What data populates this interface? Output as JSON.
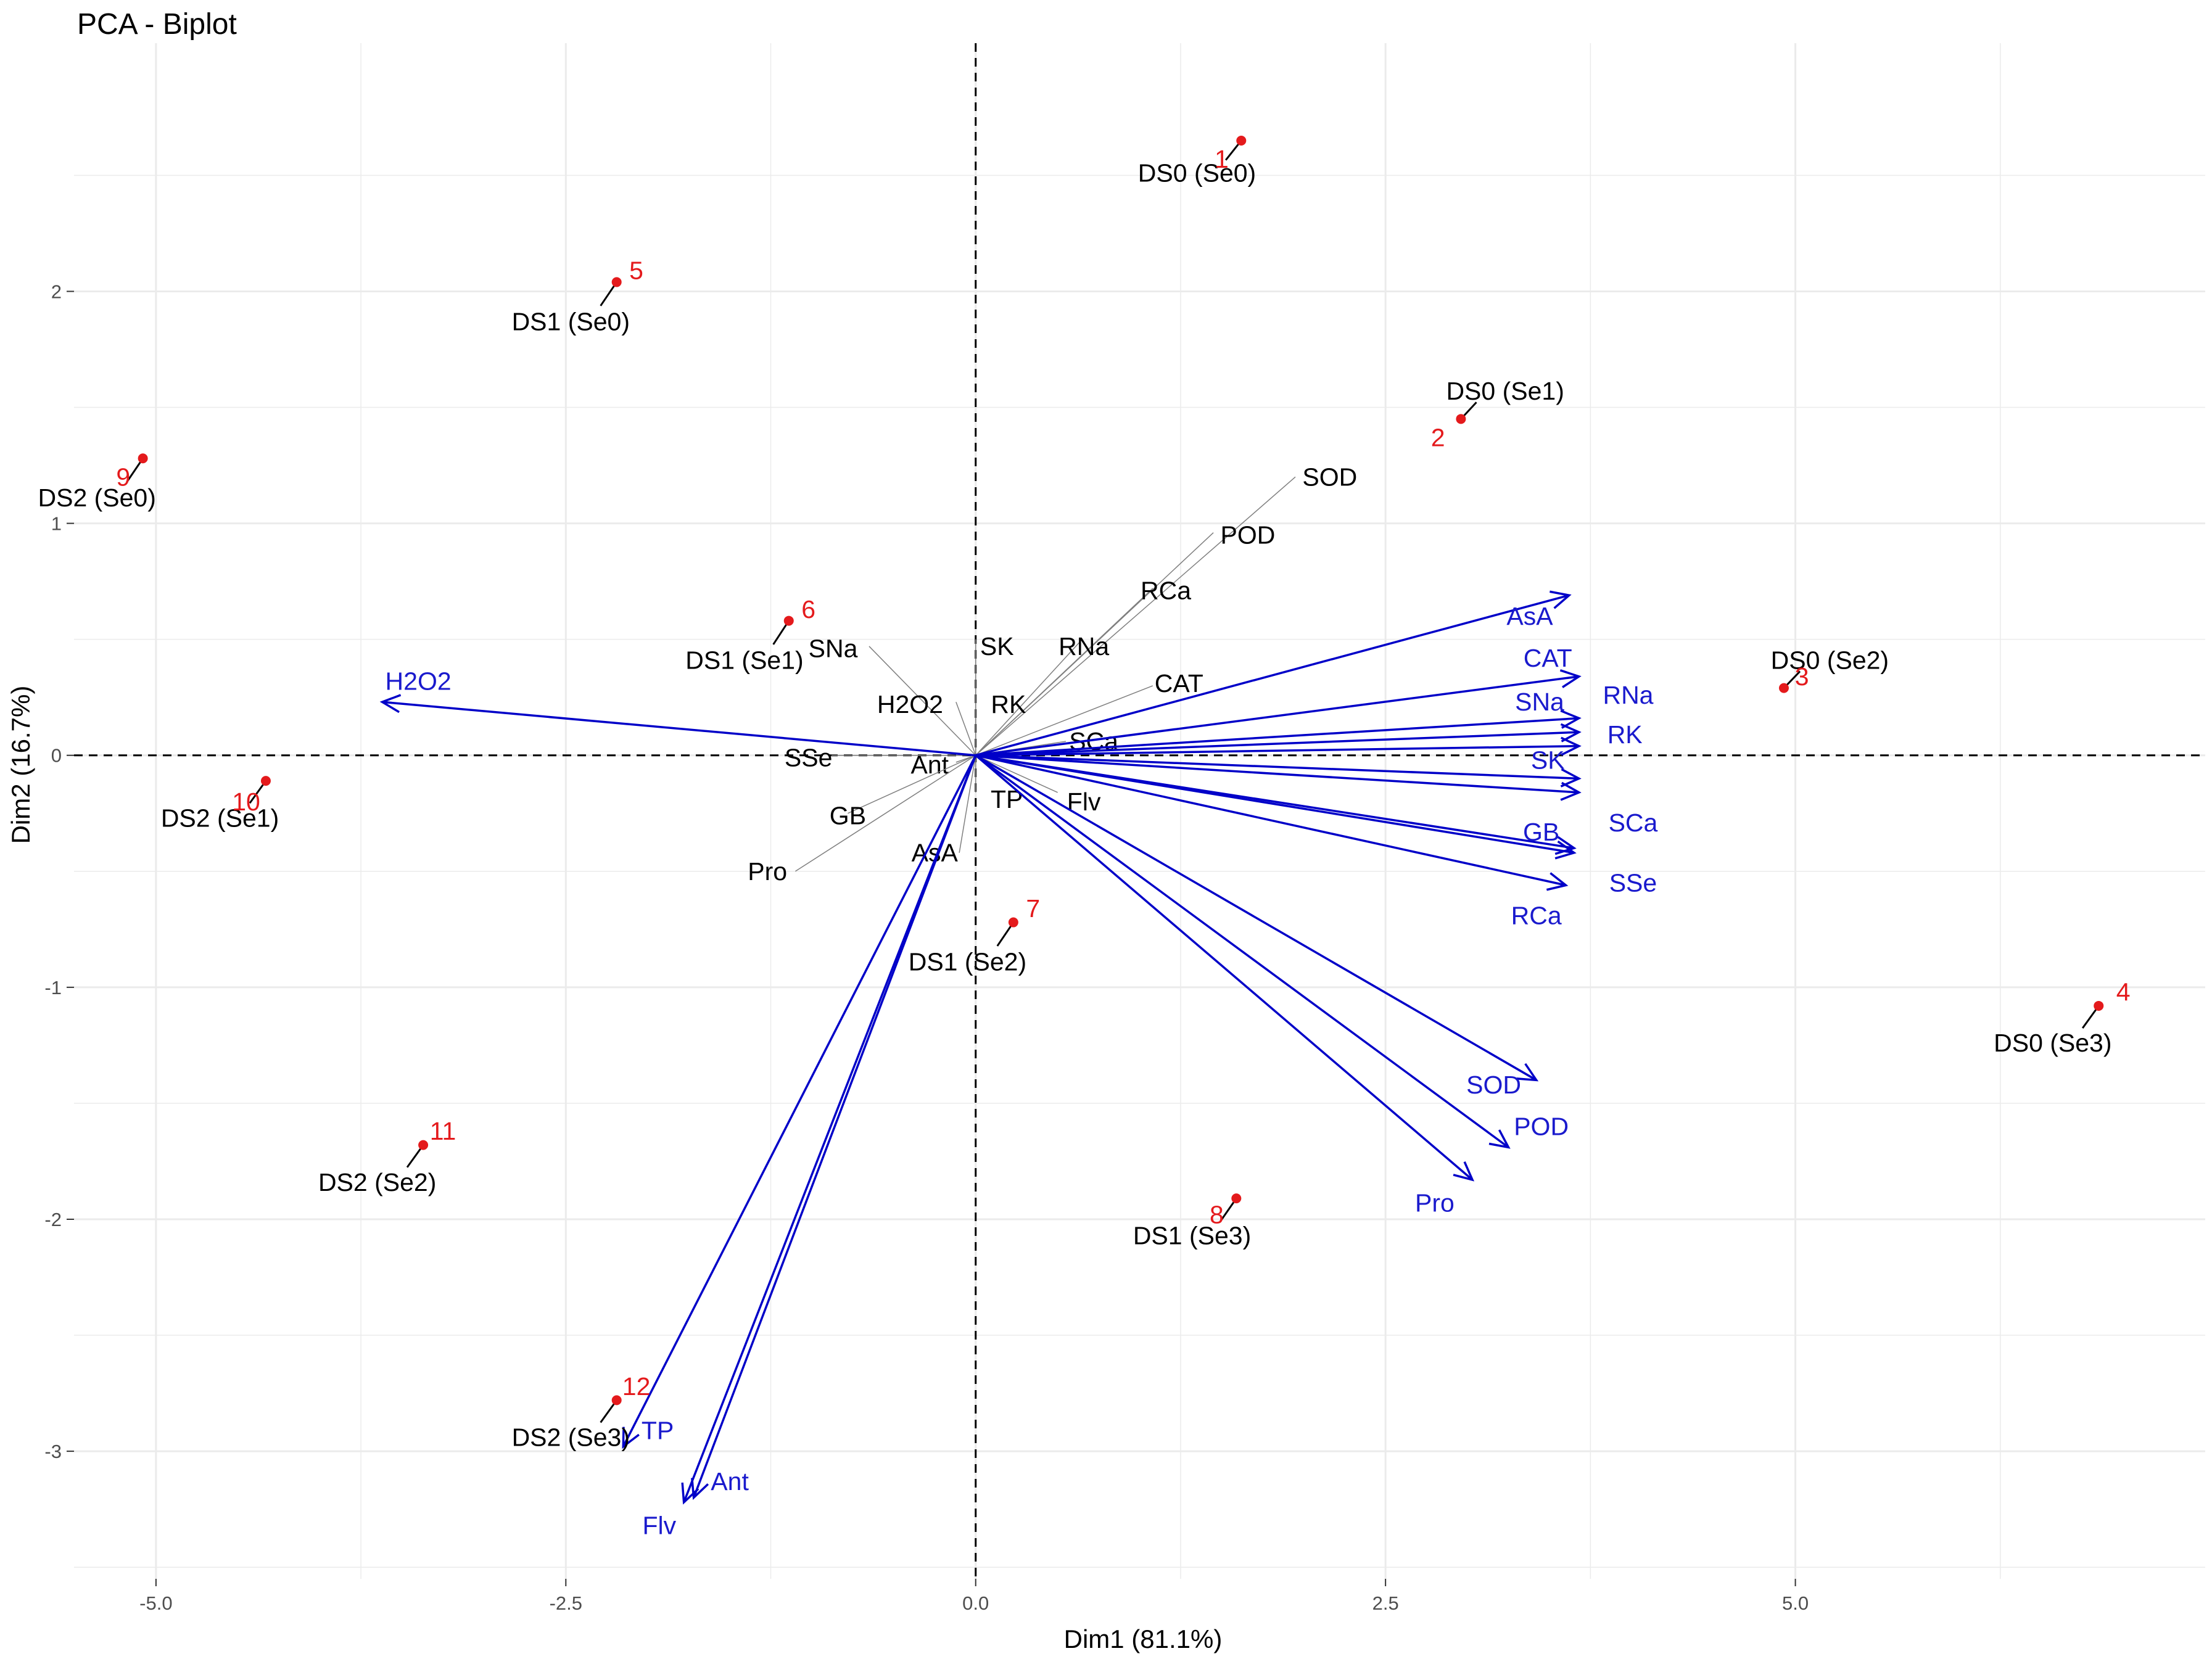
{
  "chart_data": {
    "type": "scatter",
    "title": "PCA - Biplot",
    "xlabel": "Dim1 (81.1%)",
    "ylabel": "Dim2 (16.7%)",
    "xlim": [
      -5.5,
      7.5
    ],
    "ylim": [
      -3.55,
      3.07
    ],
    "x_ticks": [
      -5.0,
      -2.5,
      0.0,
      2.5,
      5.0
    ],
    "x_tick_labels": [
      "-5.0",
      "-2.5",
      "0.0",
      "2.5",
      "5.0"
    ],
    "y_ticks": [
      -3,
      -2,
      -1,
      0,
      1,
      2
    ],
    "y_tick_labels": [
      "-3",
      "-2",
      "-1",
      "0",
      "1",
      "2"
    ],
    "grid": true,
    "colors": {
      "point": "#e41a1c",
      "id_label": "#e41a1c",
      "arrow": "#0000c8",
      "arrow_label": "#1a1acd",
      "black_segment": "#7f7f7f",
      "grid": "#ebebeb"
    },
    "points": [
      {
        "id": "1",
        "name": "DS0 (Se0)",
        "x": 1.62,
        "y": 2.65,
        "label_x": 1.35,
        "label_y": 2.51
      },
      {
        "id": "2",
        "name": "DS0 (Se1)",
        "x": 2.96,
        "y": 1.45,
        "label_x": 3.23,
        "label_y": 1.57
      },
      {
        "id": "3",
        "name": "DS0 (Se2)",
        "x": 4.93,
        "y": 0.29,
        "label_x": 5.21,
        "label_y": 0.41
      },
      {
        "id": "4",
        "name": "DS0 (Se3)",
        "x": 6.85,
        "y": -1.08,
        "label_x": 6.57,
        "label_y": -1.24
      },
      {
        "id": "5",
        "name": "DS1 (Se0)",
        "x": -2.19,
        "y": 2.04,
        "label_x": -2.47,
        "label_y": 1.87
      },
      {
        "id": "6",
        "name": "DS1 (Se1)",
        "x": -1.14,
        "y": 0.58,
        "label_x": -1.41,
        "label_y": 0.41
      },
      {
        "id": "7",
        "name": "DS1 (Se2)",
        "x": 0.23,
        "y": -0.72,
        "label_x": -0.05,
        "label_y": -0.89
      },
      {
        "id": "8",
        "name": "DS1 (Se3)",
        "x": 1.59,
        "y": -1.91,
        "label_x": 1.32,
        "label_y": -2.07
      },
      {
        "id": "9",
        "name": "DS2 (Se0)",
        "x": -5.08,
        "y": 1.28,
        "label_x": -5.36,
        "label_y": 1.11
      },
      {
        "id": "10",
        "name": "DS2 (Se1)",
        "x": -4.33,
        "y": -0.11,
        "label_x": -4.61,
        "label_y": -0.27
      },
      {
        "id": "11",
        "name": "DS2 (Se2)",
        "x": -3.37,
        "y": -1.68,
        "label_x": -3.65,
        "label_y": -1.84
      },
      {
        "id": "12",
        "name": "DS2 (Se3)",
        "x": -2.19,
        "y": -2.78,
        "label_x": -2.47,
        "label_y": -2.94
      }
    ],
    "id_label_positions": [
      {
        "id": "1",
        "x": 1.5,
        "y": 2.57
      },
      {
        "id": "2",
        "x": 2.82,
        "y": 1.37
      },
      {
        "id": "3",
        "x": 5.04,
        "y": 0.34
      },
      {
        "id": "4",
        "x": 7.0,
        "y": -1.02
      },
      {
        "id": "5",
        "x": -2.07,
        "y": 2.09
      },
      {
        "id": "6",
        "x": -1.02,
        "y": 0.63
      },
      {
        "id": "7",
        "x": 0.35,
        "y": -0.66
      },
      {
        "id": "8",
        "x": 1.47,
        "y": -1.98
      },
      {
        "id": "9",
        "x": -5.2,
        "y": 1.2
      },
      {
        "id": "10",
        "x": -4.45,
        "y": -0.2
      },
      {
        "id": "11",
        "x": -3.25,
        "y": -1.62
      },
      {
        "id": "12",
        "x": -2.07,
        "y": -2.72
      }
    ],
    "variable_segments": [
      {
        "name": "SOD",
        "x": 1.95,
        "y": 1.2,
        "label_x": 2.16,
        "label_y": 1.2
      },
      {
        "name": "POD",
        "x": 1.45,
        "y": 0.96,
        "label_x": 1.66,
        "label_y": 0.95
      },
      {
        "name": "RCa",
        "x": 1.08,
        "y": 0.72,
        "label_x": 1.16,
        "label_y": 0.71
      },
      {
        "name": "RNa",
        "x": 0.65,
        "y": 0.5,
        "label_x": 0.66,
        "label_y": 0.47
      },
      {
        "name": "SK",
        "x": 0.0,
        "y": 0.5,
        "label_x": 0.13,
        "label_y": 0.47
      },
      {
        "name": "SNa",
        "x": -0.65,
        "y": 0.47,
        "label_x": -0.87,
        "label_y": 0.46
      },
      {
        "name": "CAT",
        "x": 1.08,
        "y": 0.3,
        "label_x": 1.24,
        "label_y": 0.31
      },
      {
        "name": "H2O2",
        "x": -0.12,
        "y": 0.23,
        "label_x": -0.4,
        "label_y": 0.22
      },
      {
        "name": "RK",
        "x": 0.0,
        "y": 0.23,
        "label_x": 0.2,
        "label_y": 0.22
      },
      {
        "name": "SCa",
        "x": 0.55,
        "y": 0.06,
        "label_x": 0.72,
        "label_y": 0.06
      },
      {
        "name": "SSe",
        "x": -0.88,
        "y": 0.0,
        "label_x": -1.02,
        "label_y": -0.01
      },
      {
        "name": "Ant",
        "x": -0.12,
        "y": -0.03,
        "label_x": -0.28,
        "label_y": -0.04
      },
      {
        "name": "TP",
        "x": 0.0,
        "y": -0.16,
        "label_x": 0.19,
        "label_y": -0.19
      },
      {
        "name": "Flv",
        "x": 0.5,
        "y": -0.16,
        "label_x": 0.66,
        "label_y": -0.2
      },
      {
        "name": "GB",
        "x": -0.78,
        "y": -0.25,
        "label_x": -0.78,
        "label_y": -0.26
      },
      {
        "name": "AsA",
        "x": -0.1,
        "y": -0.42,
        "label_x": -0.25,
        "label_y": -0.42
      },
      {
        "name": "Pro",
        "x": -1.1,
        "y": -0.5,
        "label_x": -1.27,
        "label_y": -0.5
      }
    ],
    "variable_arrows": [
      {
        "name": "H2O2",
        "x": -3.62,
        "y": 0.23,
        "label_x": -3.4,
        "label_y": 0.32
      },
      {
        "name": "AsA",
        "x": 3.62,
        "y": 0.69,
        "label_x": 3.38,
        "label_y": 0.6
      },
      {
        "name": "CAT",
        "x": 3.68,
        "y": 0.34,
        "label_x": 3.49,
        "label_y": 0.42
      },
      {
        "name": "SNa",
        "x": 3.68,
        "y": 0.16,
        "label_x": 3.44,
        "label_y": 0.23
      },
      {
        "name": "RNa",
        "x": 3.68,
        "y": 0.1,
        "label_x": 3.98,
        "label_y": 0.26
      },
      {
        "name": "RK",
        "x": 3.68,
        "y": 0.04,
        "label_x": 3.96,
        "label_y": 0.09
      },
      {
        "name": "SK",
        "x": 3.68,
        "y": -0.1,
        "label_x": 3.49,
        "label_y": -0.02
      },
      {
        "name": "SCa",
        "x": 3.68,
        "y": -0.16,
        "label_x": 4.01,
        "label_y": -0.29
      },
      {
        "name": "GB",
        "x": 3.65,
        "y": -0.4,
        "label_x": 3.45,
        "label_y": -0.33
      },
      {
        "name": "SSe",
        "x": 3.65,
        "y": -0.42,
        "label_x": 4.01,
        "label_y": -0.55
      },
      {
        "name": "RCa",
        "x": 3.6,
        "y": -0.56,
        "label_x": 3.42,
        "label_y": -0.69
      },
      {
        "name": "SOD",
        "x": 3.42,
        "y": -1.4,
        "label_x": 3.16,
        "label_y": -1.42
      },
      {
        "name": "POD",
        "x": 3.25,
        "y": -1.69,
        "label_x": 3.45,
        "label_y": -1.6
      },
      {
        "name": "Pro",
        "x": 3.03,
        "y": -1.83,
        "label_x": 2.8,
        "label_y": -1.93
      },
      {
        "name": "TP",
        "x": -2.15,
        "y": -2.98,
        "label_x": -1.94,
        "label_y": -2.91
      },
      {
        "name": "Ant",
        "x": -1.72,
        "y": -3.2,
        "label_x": -1.5,
        "label_y": -3.13
      },
      {
        "name": "Flv",
        "x": -1.78,
        "y": -3.22,
        "label_x": -1.93,
        "label_y": -3.32
      }
    ]
  }
}
